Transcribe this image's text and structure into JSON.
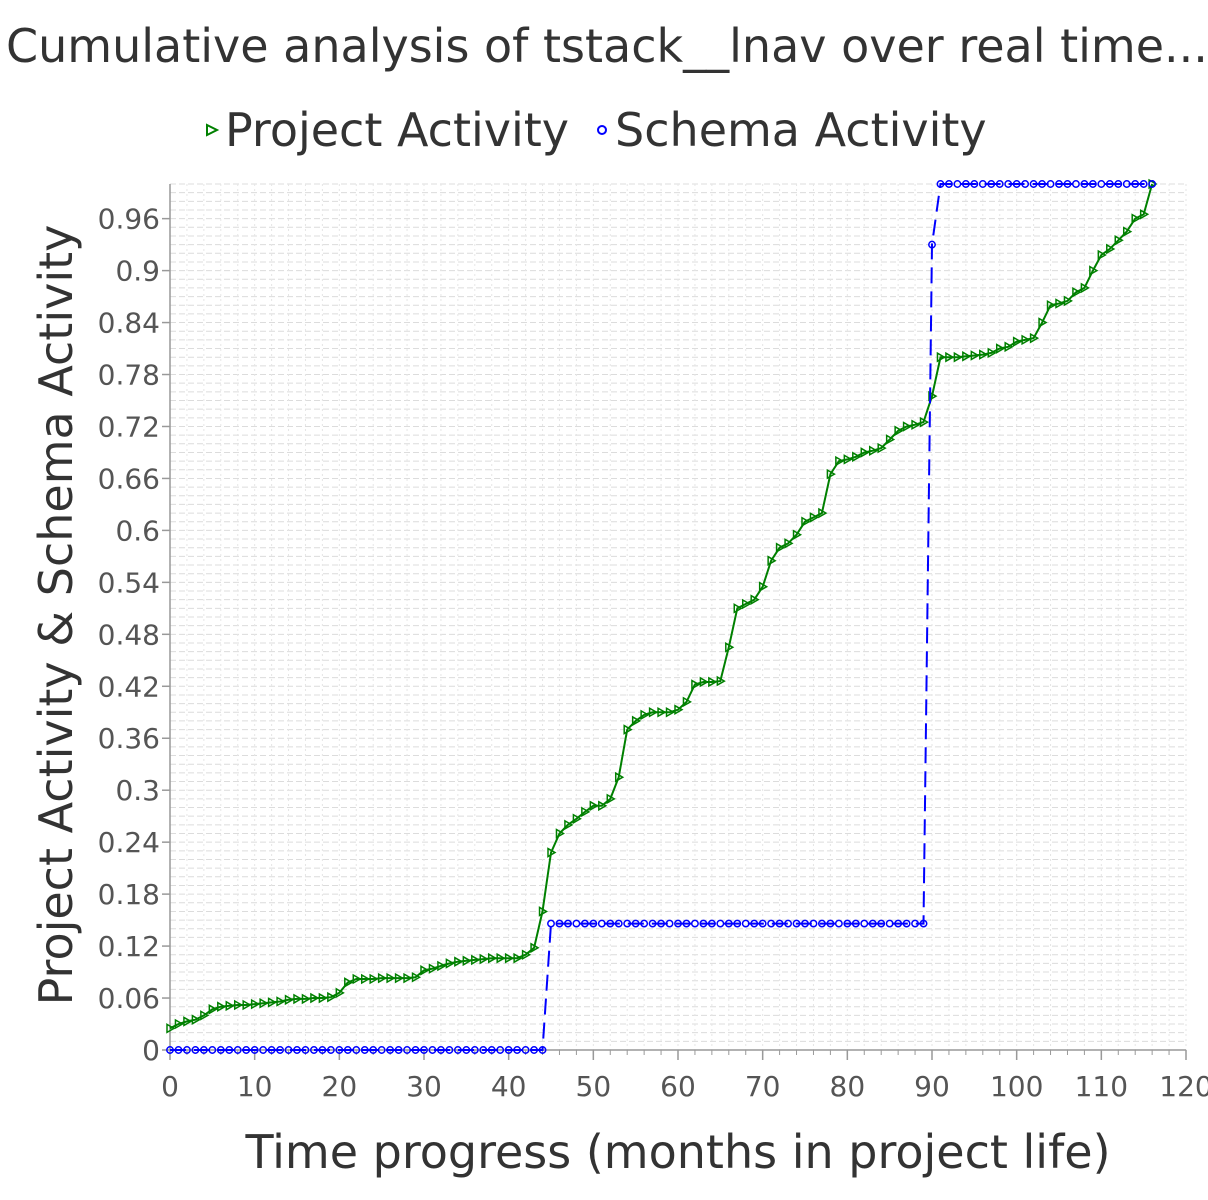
{
  "chart_data": {
    "type": "line",
    "title": "Cumulative analysis of tstack__lnav over real time...",
    "xlabel": "Time progress (months in project life)",
    "ylabel": "Project Activity & Schema Activity",
    "xlim": [
      0,
      120
    ],
    "ylim": [
      0,
      1.0
    ],
    "x_ticks": [
      "0",
      "10",
      "20",
      "30",
      "40",
      "50",
      "60",
      "70",
      "80",
      "90",
      "100",
      "110",
      "120"
    ],
    "y_ticks": [
      "0",
      "0.06",
      "0.12",
      "0.18",
      "0.24",
      "0.3",
      "0.36",
      "0.42",
      "0.48",
      "0.54",
      "0.6",
      "0.66",
      "0.72",
      "0.78",
      "0.84",
      "0.9",
      "0.96"
    ],
    "grid": true,
    "legend_position": "top",
    "series": [
      {
        "name": "Project Activity",
        "color": "#008000",
        "marker": "triangle-right",
        "line": "solid",
        "points": [
          [
            0,
            0.025
          ],
          [
            1,
            0.03
          ],
          [
            2,
            0.033
          ],
          [
            3,
            0.035
          ],
          [
            4,
            0.04
          ],
          [
            5,
            0.047
          ],
          [
            6,
            0.05
          ],
          [
            7,
            0.051
          ],
          [
            8,
            0.052
          ],
          [
            9,
            0.052
          ],
          [
            10,
            0.053
          ],
          [
            11,
            0.054
          ],
          [
            12,
            0.055
          ],
          [
            13,
            0.056
          ],
          [
            14,
            0.058
          ],
          [
            15,
            0.059
          ],
          [
            16,
            0.059
          ],
          [
            17,
            0.06
          ],
          [
            18,
            0.06
          ],
          [
            19,
            0.061
          ],
          [
            20,
            0.066
          ],
          [
            21,
            0.078
          ],
          [
            22,
            0.082
          ],
          [
            23,
            0.082
          ],
          [
            24,
            0.082
          ],
          [
            25,
            0.083
          ],
          [
            26,
            0.083
          ],
          [
            27,
            0.083
          ],
          [
            28,
            0.083
          ],
          [
            29,
            0.084
          ],
          [
            30,
            0.092
          ],
          [
            31,
            0.094
          ],
          [
            32,
            0.097
          ],
          [
            33,
            0.1
          ],
          [
            34,
            0.102
          ],
          [
            35,
            0.103
          ],
          [
            36,
            0.104
          ],
          [
            37,
            0.105
          ],
          [
            38,
            0.106
          ],
          [
            39,
            0.106
          ],
          [
            40,
            0.106
          ],
          [
            41,
            0.106
          ],
          [
            42,
            0.11
          ],
          [
            43,
            0.118
          ],
          [
            44,
            0.16
          ],
          [
            45,
            0.228
          ],
          [
            46,
            0.25
          ],
          [
            47,
            0.26
          ],
          [
            48,
            0.267
          ],
          [
            49,
            0.275
          ],
          [
            50,
            0.282
          ],
          [
            51,
            0.282
          ],
          [
            52,
            0.29
          ],
          [
            53,
            0.315
          ],
          [
            54,
            0.37
          ],
          [
            55,
            0.38
          ],
          [
            56,
            0.387
          ],
          [
            57,
            0.39
          ],
          [
            58,
            0.39
          ],
          [
            59,
            0.39
          ],
          [
            60,
            0.393
          ],
          [
            61,
            0.402
          ],
          [
            62,
            0.422
          ],
          [
            63,
            0.425
          ],
          [
            64,
            0.425
          ],
          [
            65,
            0.426
          ],
          [
            66,
            0.465
          ],
          [
            67,
            0.51
          ],
          [
            68,
            0.515
          ],
          [
            69,
            0.52
          ],
          [
            70,
            0.535
          ],
          [
            71,
            0.565
          ],
          [
            72,
            0.58
          ],
          [
            73,
            0.585
          ],
          [
            74,
            0.595
          ],
          [
            75,
            0.61
          ],
          [
            76,
            0.615
          ],
          [
            77,
            0.62
          ],
          [
            78,
            0.665
          ],
          [
            79,
            0.68
          ],
          [
            80,
            0.682
          ],
          [
            81,
            0.685
          ],
          [
            82,
            0.69
          ],
          [
            83,
            0.692
          ],
          [
            84,
            0.695
          ],
          [
            85,
            0.705
          ],
          [
            86,
            0.715
          ],
          [
            87,
            0.72
          ],
          [
            88,
            0.722
          ],
          [
            89,
            0.725
          ],
          [
            90,
            0.755
          ],
          [
            91,
            0.8
          ],
          [
            92,
            0.8
          ],
          [
            93,
            0.8
          ],
          [
            94,
            0.801
          ],
          [
            95,
            0.802
          ],
          [
            96,
            0.803
          ],
          [
            97,
            0.805
          ],
          [
            98,
            0.81
          ],
          [
            99,
            0.812
          ],
          [
            100,
            0.818
          ],
          [
            101,
            0.82
          ],
          [
            102,
            0.822
          ],
          [
            103,
            0.84
          ],
          [
            104,
            0.86
          ],
          [
            105,
            0.862
          ],
          [
            106,
            0.865
          ],
          [
            107,
            0.875
          ],
          [
            108,
            0.88
          ],
          [
            109,
            0.9
          ],
          [
            110,
            0.918
          ],
          [
            111,
            0.925
          ],
          [
            112,
            0.935
          ],
          [
            113,
            0.945
          ],
          [
            114,
            0.96
          ],
          [
            115,
            0.965
          ],
          [
            116,
            1.0
          ]
        ]
      },
      {
        "name": "Schema Activity",
        "color": "#0000ff",
        "marker": "circle",
        "line": "dashed",
        "points": [
          [
            0,
            0.0
          ],
          [
            1,
            0.0
          ],
          [
            2,
            0.0
          ],
          [
            3,
            0.0
          ],
          [
            4,
            0.0
          ],
          [
            5,
            0.0
          ],
          [
            6,
            0.0
          ],
          [
            7,
            0.0
          ],
          [
            8,
            0.0
          ],
          [
            9,
            0.0
          ],
          [
            10,
            0.0
          ],
          [
            11,
            0.0
          ],
          [
            12,
            0.0
          ],
          [
            13,
            0.0
          ],
          [
            14,
            0.0
          ],
          [
            15,
            0.0
          ],
          [
            16,
            0.0
          ],
          [
            17,
            0.0
          ],
          [
            18,
            0.0
          ],
          [
            19,
            0.0
          ],
          [
            20,
            0.0
          ],
          [
            21,
            0.0
          ],
          [
            22,
            0.0
          ],
          [
            23,
            0.0
          ],
          [
            24,
            0.0
          ],
          [
            25,
            0.0
          ],
          [
            26,
            0.0
          ],
          [
            27,
            0.0
          ],
          [
            28,
            0.0
          ],
          [
            29,
            0.0
          ],
          [
            30,
            0.0
          ],
          [
            31,
            0.0
          ],
          [
            32,
            0.0
          ],
          [
            33,
            0.0
          ],
          [
            34,
            0.0
          ],
          [
            35,
            0.0
          ],
          [
            36,
            0.0
          ],
          [
            37,
            0.0
          ],
          [
            38,
            0.0
          ],
          [
            39,
            0.0
          ],
          [
            40,
            0.0
          ],
          [
            41,
            0.0
          ],
          [
            42,
            0.0
          ],
          [
            43,
            0.0
          ],
          [
            44,
            0.0
          ],
          [
            45,
            0.146
          ],
          [
            46,
            0.146
          ],
          [
            47,
            0.146
          ],
          [
            48,
            0.146
          ],
          [
            49,
            0.146
          ],
          [
            50,
            0.146
          ],
          [
            51,
            0.146
          ],
          [
            52,
            0.146
          ],
          [
            53,
            0.146
          ],
          [
            54,
            0.146
          ],
          [
            55,
            0.146
          ],
          [
            56,
            0.146
          ],
          [
            57,
            0.146
          ],
          [
            58,
            0.146
          ],
          [
            59,
            0.146
          ],
          [
            60,
            0.146
          ],
          [
            61,
            0.146
          ],
          [
            62,
            0.146
          ],
          [
            63,
            0.146
          ],
          [
            64,
            0.146
          ],
          [
            65,
            0.146
          ],
          [
            66,
            0.146
          ],
          [
            67,
            0.146
          ],
          [
            68,
            0.146
          ],
          [
            69,
            0.146
          ],
          [
            70,
            0.146
          ],
          [
            71,
            0.146
          ],
          [
            72,
            0.146
          ],
          [
            73,
            0.146
          ],
          [
            74,
            0.146
          ],
          [
            75,
            0.146
          ],
          [
            76,
            0.146
          ],
          [
            77,
            0.146
          ],
          [
            78,
            0.146
          ],
          [
            79,
            0.146
          ],
          [
            80,
            0.146
          ],
          [
            81,
            0.146
          ],
          [
            82,
            0.146
          ],
          [
            83,
            0.146
          ],
          [
            84,
            0.146
          ],
          [
            85,
            0.146
          ],
          [
            86,
            0.146
          ],
          [
            87,
            0.146
          ],
          [
            88,
            0.146
          ],
          [
            89,
            0.146
          ],
          [
            90,
            0.93
          ],
          [
            91,
            1.0
          ],
          [
            92,
            1.0
          ],
          [
            93,
            1.0
          ],
          [
            94,
            1.0
          ],
          [
            95,
            1.0
          ],
          [
            96,
            1.0
          ],
          [
            97,
            1.0
          ],
          [
            98,
            1.0
          ],
          [
            99,
            1.0
          ],
          [
            100,
            1.0
          ],
          [
            101,
            1.0
          ],
          [
            102,
            1.0
          ],
          [
            103,
            1.0
          ],
          [
            104,
            1.0
          ],
          [
            105,
            1.0
          ],
          [
            106,
            1.0
          ],
          [
            107,
            1.0
          ],
          [
            108,
            1.0
          ],
          [
            109,
            1.0
          ],
          [
            110,
            1.0
          ],
          [
            111,
            1.0
          ],
          [
            112,
            1.0
          ],
          [
            113,
            1.0
          ],
          [
            114,
            1.0
          ],
          [
            115,
            1.0
          ],
          [
            116,
            1.0
          ]
        ]
      }
    ]
  }
}
